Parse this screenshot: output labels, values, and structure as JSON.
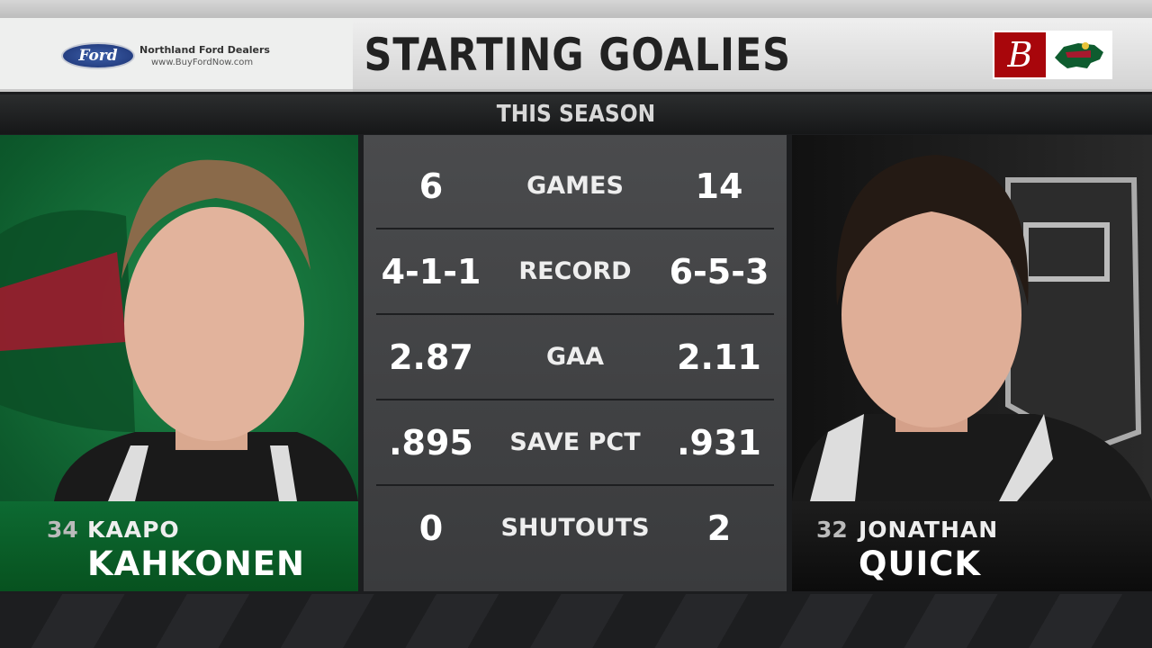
{
  "header": {
    "title": "STARTING GOALIES",
    "subtitle": "THIS SEASON"
  },
  "sponsor": {
    "logo_text": "Ford",
    "name": "Northland Ford Dealers",
    "url": "www.BuyFordNow.com"
  },
  "logos": {
    "bally_letter": "B",
    "team_logo": "minnesota-wild-logo",
    "bally_color": "#a8060b"
  },
  "players": {
    "left": {
      "number": "34",
      "first_name": "KAAPO",
      "last_name": "KAHKONEN",
      "team_color": "#0d6a32"
    },
    "right": {
      "number": "32",
      "first_name": "JONATHAN",
      "last_name": "QUICK",
      "team_color": "#111111"
    }
  },
  "stats": [
    {
      "label": "GAMES",
      "left": "6",
      "right": "14"
    },
    {
      "label": "RECORD",
      "left": "4-1-1",
      "right": "6-5-3"
    },
    {
      "label": "GAA",
      "left": "2.87",
      "right": "2.11"
    },
    {
      "label": "SAVE PCT",
      "left": ".895",
      "right": ".931"
    },
    {
      "label": "SHUTOUTS",
      "left": "0",
      "right": "2"
    }
  ]
}
